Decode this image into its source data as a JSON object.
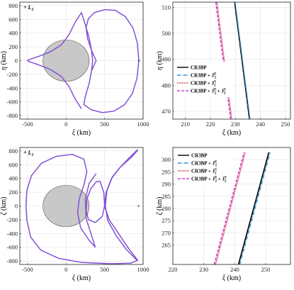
{
  "chart_data": [
    {
      "type": "line",
      "panel": "top-left",
      "xlabel_sym": "ξ",
      "xlabel_unit": " (km)",
      "ylabel_sym": "η",
      "ylabel_unit": " (km)",
      "xlim": [
        -600,
        1000
      ],
      "ylim": [
        -850,
        850
      ],
      "xticks": [
        -500,
        0,
        500,
        1000
      ],
      "xtick_labels": [
        "-500",
        "0",
        "500",
        "1000"
      ],
      "yticks": [
        -800,
        -600,
        -400,
        -200,
        0,
        200,
        400,
        600,
        800
      ],
      "ytick_labels": [
        "-800",
        "-600",
        "-400",
        "-200",
        "0",
        "200",
        "400",
        "600",
        "800"
      ],
      "annotation": "+ L",
      "annotation_sub": "1",
      "body": {
        "center": [
          0,
          0
        ],
        "radius": 300,
        "color": "#c8c8c8"
      },
      "trajectory": "blue dotted curve over purple dashed curve, left lobe closing at xi=-500 and right loop spanning xi=200..950",
      "colors": {
        "blue": "#1f6fd0",
        "purple": "#c33bdc"
      }
    },
    {
      "type": "line",
      "panel": "top-right",
      "xlabel_sym": "ξ",
      "xlabel_unit": " (km)",
      "ylabel_sym": "η",
      "ylabel_unit": " (km)",
      "xlim": [
        205,
        252
      ],
      "ylim": [
        467,
        512
      ],
      "xticks": [
        210,
        220,
        230,
        240,
        250
      ],
      "xtick_labels": [
        "210",
        "220",
        "230",
        "240",
        "250"
      ],
      "yticks": [
        470,
        480,
        490,
        500,
        510
      ],
      "ytick_labels": [
        "470",
        "480",
        "490",
        "500",
        "510"
      ],
      "legend_position": "center-left",
      "series": [
        {
          "name": "CR3BP",
          "color": "#000000",
          "style": "solid",
          "x": [
            229.7,
            235.6
          ],
          "y": [
            512,
            467
          ]
        },
        {
          "name": "CR3BP + J",
          "sup": "E",
          "sub": "2",
          "color": "#2f93c9",
          "style": "dashdot",
          "x": [
            229.9,
            235.8
          ],
          "y": [
            512,
            467
          ]
        },
        {
          "name": "CR3BP + J",
          "sup": "S",
          "sub": "2",
          "color": "#cc2222",
          "style": "dotted",
          "x": [
            222.6,
            228.5
          ],
          "y": [
            512,
            467
          ]
        },
        {
          "name": "CR3BP + J",
          "sup": "E",
          "sub": "2",
          "extra": " + J",
          "sup2": "S",
          "sub2": "2",
          "color": "#d43ad6",
          "style": "dashed",
          "x": [
            222.2,
            228.1
          ],
          "y": [
            512,
            467
          ]
        }
      ]
    },
    {
      "type": "line",
      "panel": "bottom-left",
      "xlabel_sym": "ξ",
      "xlabel_unit": " (km)",
      "ylabel_sym": "ζ",
      "ylabel_unit": " (km)",
      "xlim": [
        -600,
        1000
      ],
      "ylim": [
        -850,
        850
      ],
      "xticks": [
        -500,
        0,
        500,
        1000
      ],
      "xtick_labels": [
        "-500",
        "0",
        "500",
        "1000"
      ],
      "yticks": [
        -800,
        -600,
        -400,
        -200,
        0,
        200,
        400,
        600,
        800
      ],
      "ytick_labels": [
        "-800",
        "-600",
        "-400",
        "-200",
        "0",
        "200",
        "400",
        "600",
        "800"
      ],
      "annotation": "+ L",
      "annotation_sub": "1",
      "body": {
        "center": [
          0,
          0
        ],
        "radius": 300,
        "color": "#c8c8c8"
      },
      "trajectory": "blue dotted curve over purple dashed curve forming a large loop crossing at xi=500, zeta=0 with branches to xi=940",
      "colors": {
        "blue": "#1f6fd0",
        "purple": "#c33bdc"
      }
    },
    {
      "type": "line",
      "panel": "bottom-right",
      "xlabel_sym": "ξ",
      "xlabel_unit": " (km)",
      "ylabel_sym": "ζ",
      "ylabel_unit": " (km)",
      "xlim": [
        220,
        258
      ],
      "ylim": [
        257,
        305
      ],
      "xticks": [
        220,
        230,
        240,
        250
      ],
      "xtick_labels": [
        "220",
        "230",
        "240",
        "250"
      ],
      "yticks": [
        265,
        270,
        275,
        280,
        285,
        290,
        295,
        300
      ],
      "ytick_labels": [
        "265",
        "270",
        "275",
        "280",
        "285",
        "290",
        "295",
        "300"
      ],
      "legend_position": "top-left",
      "series": [
        {
          "name": "CR3BP",
          "color": "#000000",
          "style": "solid",
          "x": [
            241.2,
            251.0
          ],
          "y": [
            257,
            303
          ]
        },
        {
          "name": "CR3BP + J",
          "sup": "E",
          "sub": "2",
          "color": "#2f93c9",
          "style": "dashdot",
          "x": [
            241.6,
            251.4
          ],
          "y": [
            257,
            303
          ]
        },
        {
          "name": "CR3BP + J",
          "sup": "S",
          "sub": "2",
          "color": "#cc2222",
          "style": "dotted",
          "x": [
            233.8,
            243.4
          ],
          "y": [
            257,
            303
          ]
        },
        {
          "name": "CR3BP + J",
          "sup": "E",
          "sub": "2",
          "extra": " + J",
          "sup2": "S",
          "sub2": "2",
          "color": "#d43ad6",
          "style": "dashed",
          "x": [
            233.4,
            243.0
          ],
          "y": [
            257,
            303
          ]
        }
      ]
    }
  ]
}
